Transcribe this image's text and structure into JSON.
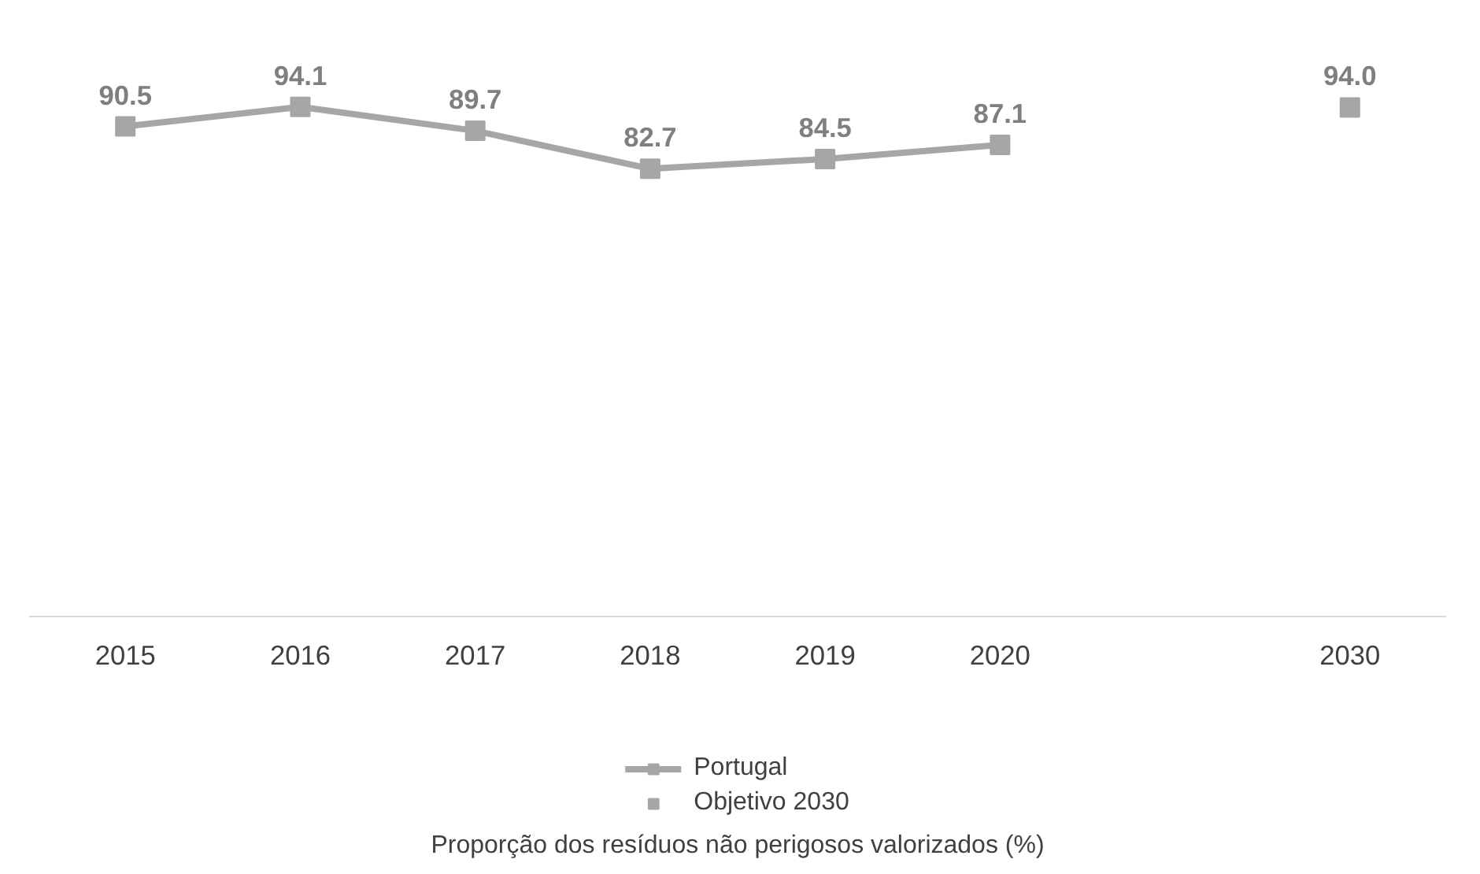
{
  "chart_data": {
    "type": "line",
    "categories": [
      "2015",
      "2016",
      "2017",
      "2018",
      "2019",
      "2020",
      null,
      "2030"
    ],
    "series": [
      {
        "name": "Portugal",
        "color": "#a6a6a6",
        "values": [
          90.5,
          94.1,
          89.7,
          82.7,
          84.5,
          87.1,
          null,
          null
        ],
        "value_labels": [
          "90.5",
          "94.1",
          "89.7",
          "82.7",
          "84.5",
          "87.1",
          null,
          null
        ]
      },
      {
        "name": "Objetivo 2030",
        "color": "#a6a6a6",
        "type": "scatter",
        "values": [
          null,
          null,
          null,
          null,
          null,
          null,
          null,
          94.0
        ],
        "value_labels": [
          null,
          null,
          null,
          null,
          null,
          null,
          null,
          "94.0"
        ]
      }
    ],
    "marker": "square",
    "legend": "bottom",
    "grid": false,
    "tick_labels": "x",
    "annotations": [
      "Proporção dos resíduos não perigosos valorizados (%)"
    ]
  }
}
